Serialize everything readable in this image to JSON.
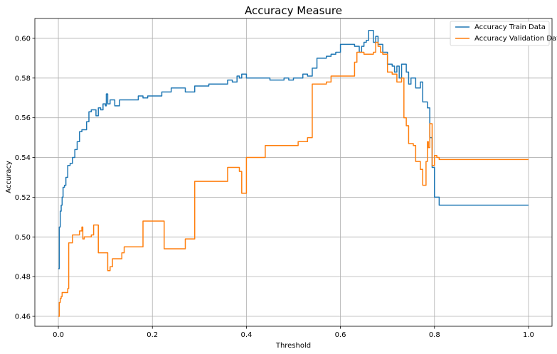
{
  "chart_data": {
    "type": "line",
    "title": "Accuracy Measure",
    "xlabel": "Threshold",
    "ylabel": "Accuracy",
    "xlim": [
      -0.05,
      1.05
    ],
    "ylim": [
      0.455,
      0.61
    ],
    "xticks": [
      0.0,
      0.2,
      0.4,
      0.6,
      0.8,
      1.0
    ],
    "xtick_labels": [
      "0.0",
      "0.2",
      "0.4",
      "0.6",
      "0.8",
      "1.0"
    ],
    "yticks": [
      0.46,
      0.48,
      0.5,
      0.52,
      0.54,
      0.56,
      0.58,
      0.6
    ],
    "ytick_labels": [
      "0.46",
      "0.48",
      "0.50",
      "0.52",
      "0.54",
      "0.56",
      "0.58",
      "0.60"
    ],
    "grid": true,
    "legend_position": "top-right",
    "series": [
      {
        "name": "Accuracy Train Data",
        "color": "#1f77b4",
        "x": [
          0.0,
          0.002,
          0.004,
          0.006,
          0.008,
          0.01,
          0.013,
          0.016,
          0.02,
          0.025,
          0.03,
          0.035,
          0.04,
          0.045,
          0.05,
          0.06,
          0.065,
          0.07,
          0.08,
          0.085,
          0.09,
          0.095,
          0.1,
          0.102,
          0.105,
          0.11,
          0.12,
          0.13,
          0.15,
          0.17,
          0.18,
          0.19,
          0.2,
          0.22,
          0.24,
          0.26,
          0.27,
          0.28,
          0.29,
          0.3,
          0.32,
          0.35,
          0.36,
          0.37,
          0.38,
          0.385,
          0.39,
          0.4,
          0.45,
          0.48,
          0.49,
          0.5,
          0.52,
          0.53,
          0.54,
          0.55,
          0.56,
          0.57,
          0.58,
          0.59,
          0.6,
          0.62,
          0.63,
          0.64,
          0.645,
          0.65,
          0.655,
          0.66,
          0.67,
          0.675,
          0.68,
          0.69,
          0.7,
          0.71,
          0.715,
          0.72,
          0.725,
          0.73,
          0.74,
          0.745,
          0.75,
          0.76,
          0.77,
          0.775,
          0.78,
          0.785,
          0.79,
          0.795,
          0.8,
          0.805,
          0.81,
          0.85,
          0.9,
          0.95,
          1.0
        ],
        "y": [
          0.484,
          0.505,
          0.513,
          0.516,
          0.52,
          0.525,
          0.526,
          0.53,
          0.536,
          0.537,
          0.54,
          0.544,
          0.548,
          0.553,
          0.554,
          0.558,
          0.563,
          0.564,
          0.561,
          0.565,
          0.564,
          0.567,
          0.566,
          0.572,
          0.567,
          0.569,
          0.566,
          0.569,
          0.569,
          0.571,
          0.57,
          0.571,
          0.571,
          0.573,
          0.575,
          0.575,
          0.573,
          0.573,
          0.576,
          0.576,
          0.577,
          0.577,
          0.579,
          0.578,
          0.581,
          0.58,
          0.582,
          0.58,
          0.579,
          0.58,
          0.579,
          0.58,
          0.582,
          0.581,
          0.585,
          0.59,
          0.59,
          0.591,
          0.592,
          0.593,
          0.597,
          0.597,
          0.596,
          0.593,
          0.596,
          0.598,
          0.599,
          0.604,
          0.598,
          0.601,
          0.597,
          0.593,
          0.587,
          0.586,
          0.583,
          0.586,
          0.58,
          0.587,
          0.583,
          0.577,
          0.58,
          0.575,
          0.578,
          0.568,
          0.568,
          0.565,
          0.55,
          0.535,
          0.52,
          0.52,
          0.516,
          0.516,
          0.516,
          0.516,
          0.516
        ]
      },
      {
        "name": "Accuracy Validation Data",
        "color": "#ff7f0e",
        "x": [
          0.0,
          0.002,
          0.004,
          0.006,
          0.008,
          0.012,
          0.018,
          0.02,
          0.022,
          0.025,
          0.03,
          0.035,
          0.045,
          0.05,
          0.052,
          0.055,
          0.06,
          0.07,
          0.075,
          0.08,
          0.085,
          0.1,
          0.105,
          0.11,
          0.115,
          0.13,
          0.135,
          0.14,
          0.16,
          0.18,
          0.22,
          0.225,
          0.265,
          0.27,
          0.285,
          0.29,
          0.355,
          0.36,
          0.38,
          0.385,
          0.39,
          0.4,
          0.43,
          0.44,
          0.5,
          0.51,
          0.52,
          0.53,
          0.535,
          0.54,
          0.56,
          0.57,
          0.575,
          0.58,
          0.6,
          0.615,
          0.63,
          0.635,
          0.64,
          0.65,
          0.66,
          0.67,
          0.675,
          0.68,
          0.685,
          0.69,
          0.7,
          0.71,
          0.72,
          0.73,
          0.735,
          0.74,
          0.745,
          0.75,
          0.755,
          0.76,
          0.77,
          0.775,
          0.78,
          0.782,
          0.785,
          0.787,
          0.79,
          0.795,
          0.8,
          0.805,
          0.81,
          0.85,
          0.9,
          0.95,
          1.0
        ],
        "y": [
          0.46,
          0.467,
          0.469,
          0.47,
          0.472,
          0.472,
          0.472,
          0.474,
          0.497,
          0.497,
          0.501,
          0.501,
          0.503,
          0.505,
          0.499,
          0.5,
          0.5,
          0.501,
          0.506,
          0.506,
          0.492,
          0.492,
          0.483,
          0.485,
          0.489,
          0.489,
          0.492,
          0.495,
          0.495,
          0.508,
          0.508,
          0.494,
          0.494,
          0.499,
          0.499,
          0.528,
          0.528,
          0.535,
          0.535,
          0.533,
          0.522,
          0.54,
          0.54,
          0.546,
          0.546,
          0.548,
          0.548,
          0.55,
          0.55,
          0.577,
          0.577,
          0.578,
          0.578,
          0.581,
          0.581,
          0.581,
          0.588,
          0.593,
          0.593,
          0.592,
          0.592,
          0.593,
          0.598,
          0.596,
          0.593,
          0.592,
          0.583,
          0.582,
          0.578,
          0.58,
          0.56,
          0.556,
          0.547,
          0.547,
          0.546,
          0.538,
          0.534,
          0.526,
          0.526,
          0.538,
          0.548,
          0.545,
          0.557,
          0.536,
          0.541,
          0.54,
          0.539,
          0.539,
          0.539,
          0.539,
          0.539
        ]
      }
    ]
  }
}
